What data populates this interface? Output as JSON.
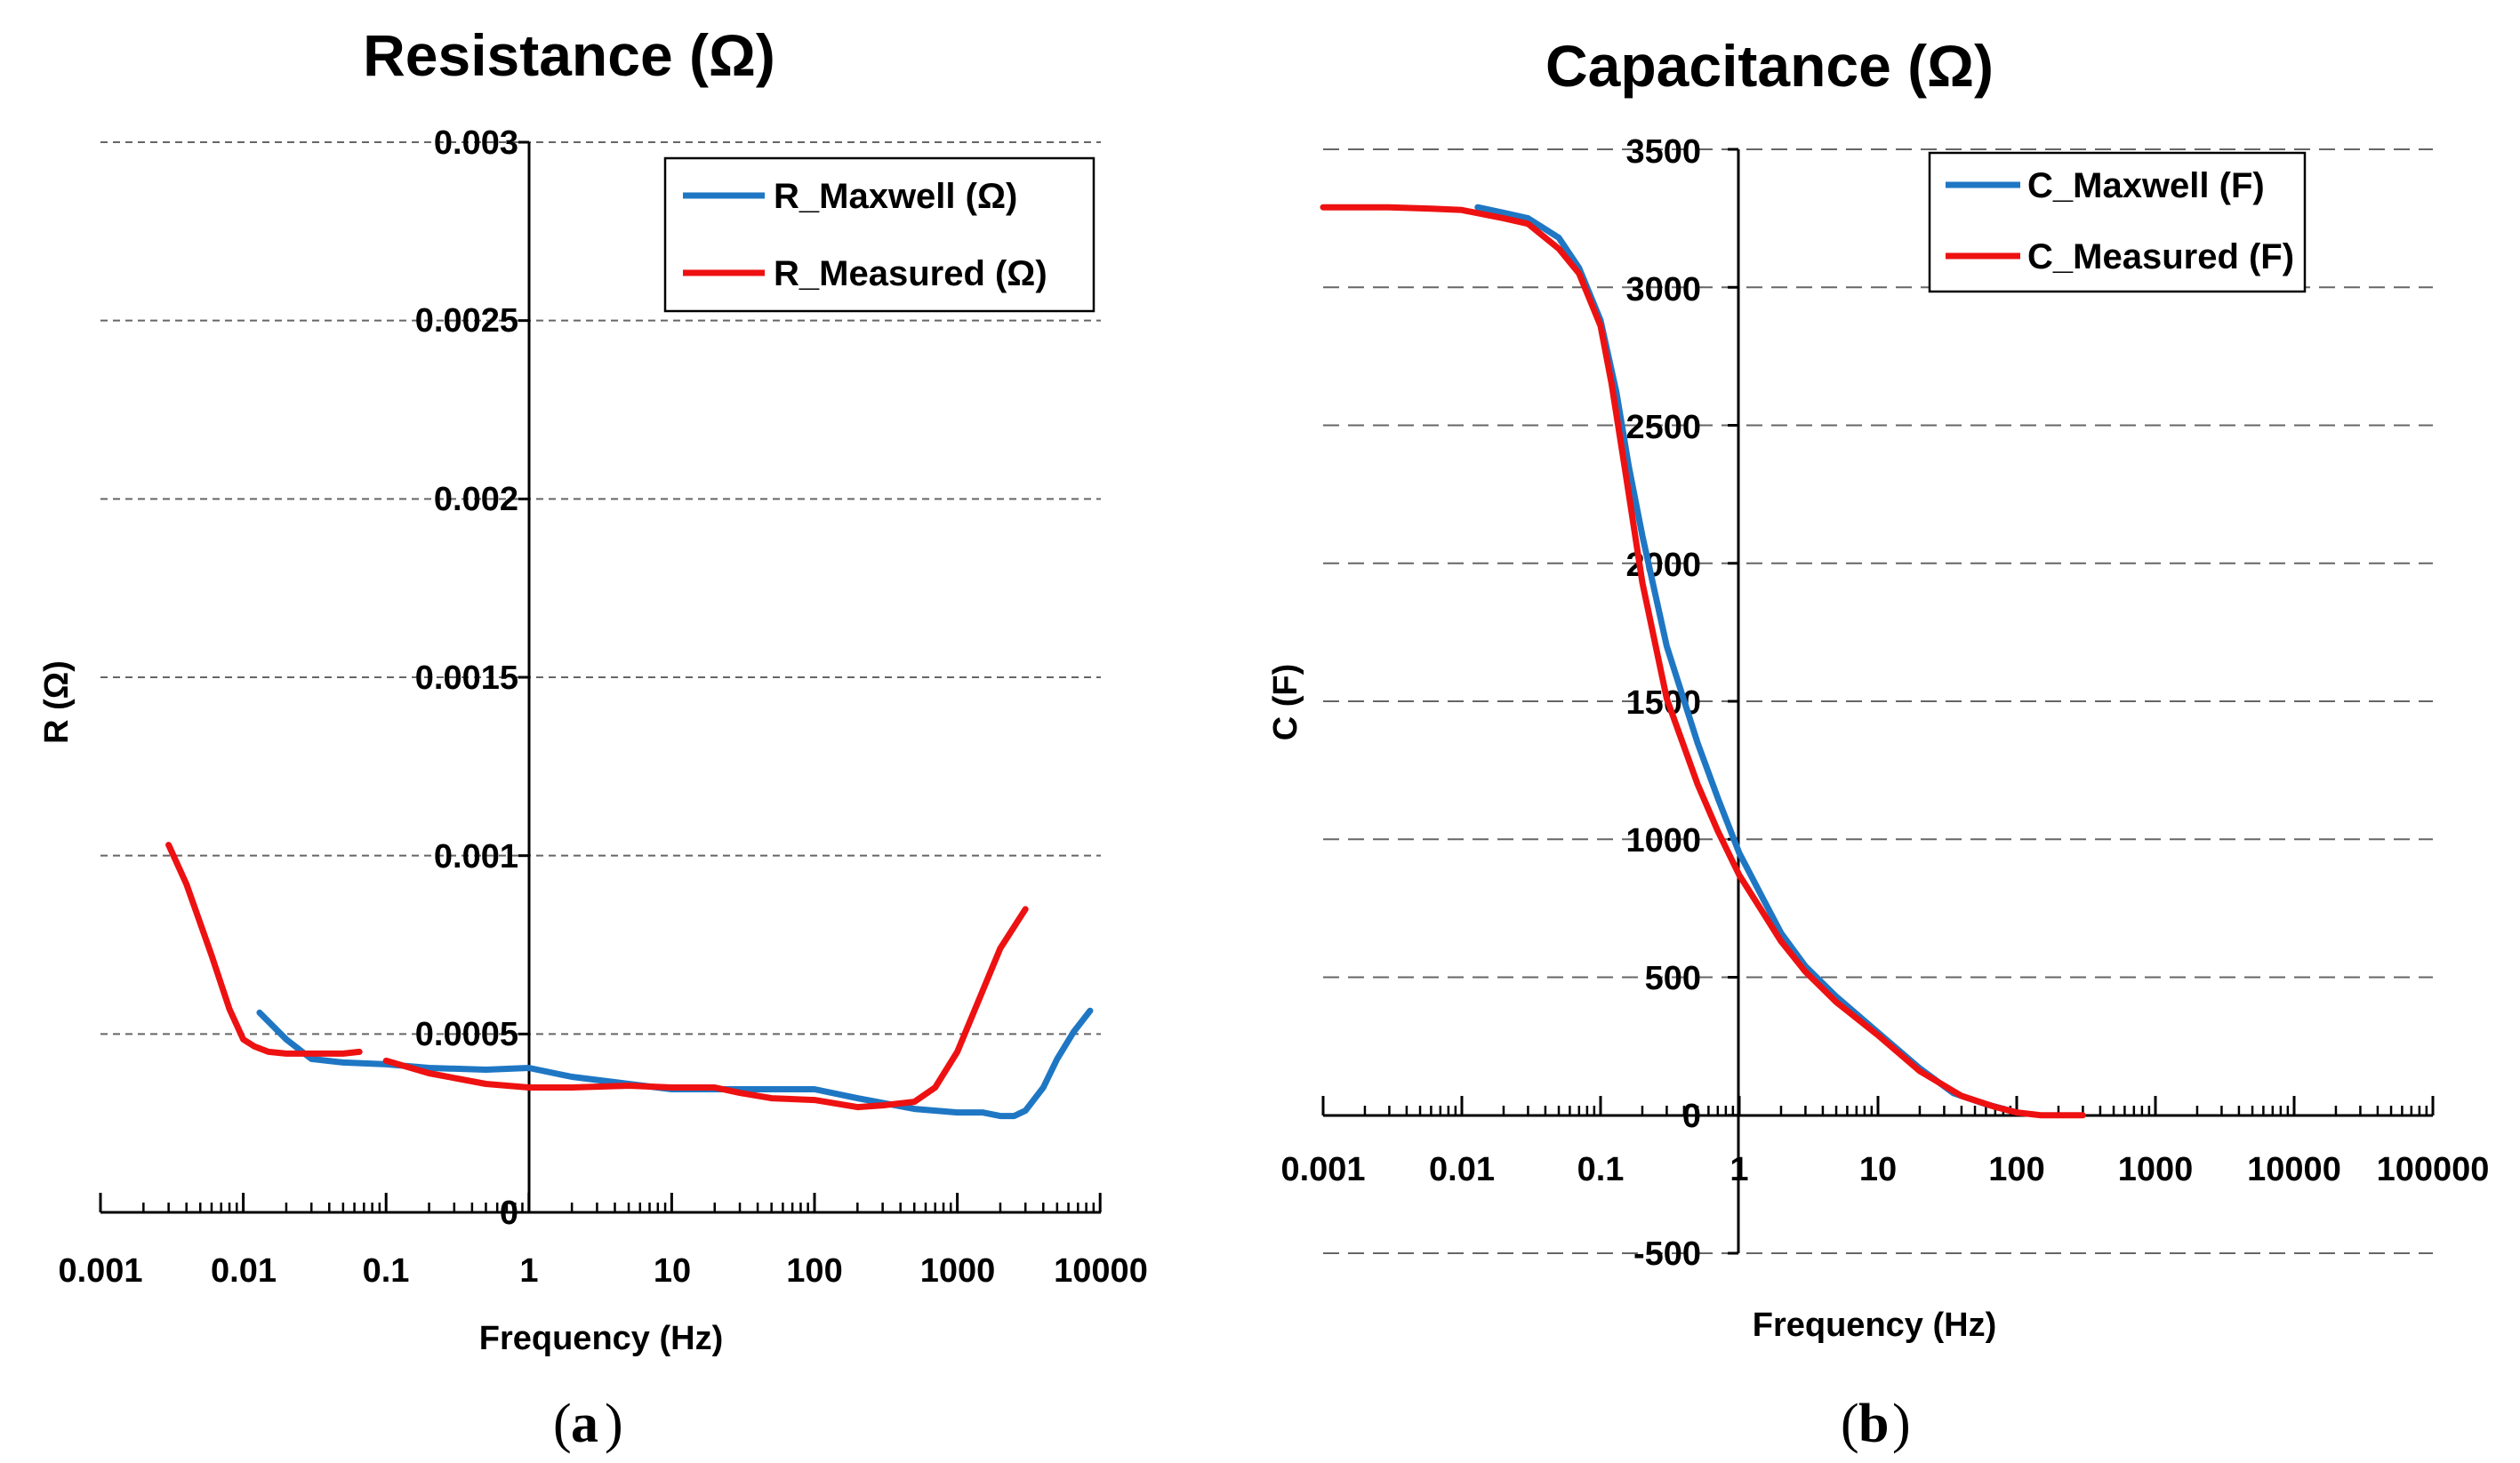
{
  "chart_data": [
    {
      "type": "line",
      "title": "Resistance (Ω)",
      "xlabel": "Frequency (Hz)",
      "ylabel": "R (Ω)",
      "xscale": "log",
      "xlim": [
        0.001,
        10000
      ],
      "ylim": [
        0,
        0.003
      ],
      "x_tick_labels": [
        "0.001",
        "0.01",
        "0.1",
        "1",
        "10",
        "100",
        "1000",
        "10000"
      ],
      "y_tick_labels": [
        "0",
        "0.0005",
        "0.001",
        "0.0015",
        "0.002",
        "0.0025",
        "0.003"
      ],
      "y_ticks": [
        0,
        0.0005,
        0.001,
        0.0015,
        0.002,
        0.0025,
        0.003
      ],
      "grid": "horizontal dashed",
      "legend_position": "top-right",
      "caption_label": "a",
      "series": [
        {
          "name": "R_Maxwell (Ω)",
          "color": "#1f77c4",
          "x": [
            0.013,
            0.02,
            0.03,
            0.05,
            0.1,
            0.2,
            0.5,
            1,
            2,
            5,
            10,
            20,
            50,
            100,
            200,
            500,
            1000,
            1500,
            2000,
            2500,
            3000,
            4000,
            5000,
            6500,
            8500
          ],
          "y": [
            0.00056,
            0.000485,
            0.00043,
            0.00042,
            0.000415,
            0.000405,
            0.0004,
            0.000405,
            0.00038,
            0.00036,
            0.000345,
            0.000345,
            0.000345,
            0.000345,
            0.00032,
            0.00029,
            0.00028,
            0.00028,
            0.00027,
            0.00027,
            0.000285,
            0.00035,
            0.00043,
            0.000505,
            0.000565
          ]
        },
        {
          "name": "R_Measured (Ω)",
          "color": "#ee1111",
          "x": [
            0.003,
            0.004,
            0.006,
            0.008,
            0.01,
            0.012,
            0.015,
            0.02,
            0.03,
            0.05,
            0.065
          ],
          "y": [
            0.00103,
            0.00092,
            0.00072,
            0.00057,
            0.000485,
            0.000465,
            0.00045,
            0.000445,
            0.000445,
            0.000445,
            0.00045
          ]
        },
        {
          "name": "R_Measured (Ω)",
          "color": "#ee1111",
          "x": [
            0.1,
            0.2,
            0.5,
            1,
            2,
            5,
            10,
            20,
            30,
            50,
            100,
            200,
            300,
            500,
            700,
            1000,
            1500,
            2000,
            3000
          ],
          "y": [
            0.000425,
            0.00039,
            0.00036,
            0.00035,
            0.00035,
            0.000355,
            0.00035,
            0.00035,
            0.000335,
            0.00032,
            0.000315,
            0.000295,
            0.0003,
            0.00031,
            0.00035,
            0.00045,
            0.00062,
            0.00074,
            0.00085
          ]
        }
      ]
    },
    {
      "type": "line",
      "title": "Capacitance (Ω)",
      "xlabel": "Frequency (Hz)",
      "ylabel": "C (F)",
      "xscale": "log",
      "xlim": [
        0.001,
        100000
      ],
      "ylim": [
        -500,
        3500
      ],
      "x_tick_labels": [
        "0.001",
        "0.01",
        "0.1",
        "1",
        "10",
        "100",
        "1000",
        "10000",
        "100000"
      ],
      "y_tick_labels": [
        "-500",
        "0",
        "500",
        "1000",
        "1500",
        "2000",
        "2500",
        "3000",
        "3500"
      ],
      "y_ticks": [
        -500,
        0,
        500,
        1000,
        1500,
        2000,
        2500,
        3000,
        3500
      ],
      "grid": "horizontal dashed",
      "legend_position": "top-right",
      "caption_label": "b",
      "series": [
        {
          "name": "C_Maxwell (F)",
          "color": "#1f77c4",
          "x": [
            0.013,
            0.02,
            0.03,
            0.05,
            0.07,
            0.1,
            0.13,
            0.16,
            0.2,
            0.3,
            0.5,
            0.7,
            1,
            1.5,
            2,
            3,
            5,
            10,
            20,
            35,
            60,
            100
          ],
          "y": [
            3290,
            3270,
            3250,
            3180,
            3070,
            2880,
            2620,
            2350,
            2100,
            1700,
            1350,
            1150,
            950,
            780,
            660,
            540,
            430,
            300,
            170,
            80,
            40,
            10
          ]
        },
        {
          "name": "C_Measured (F)",
          "color": "#ee1111",
          "x": [
            0.001,
            0.003,
            0.006,
            0.01,
            0.02,
            0.03,
            0.05,
            0.07,
            0.1,
            0.12,
            0.15,
            0.2,
            0.3,
            0.5,
            0.7,
            1,
            1.5,
            2,
            3,
            5,
            10,
            20,
            40,
            70,
            100,
            150,
            200,
            300
          ],
          "y": [
            3290,
            3290,
            3285,
            3280,
            3250,
            3230,
            3140,
            3050,
            2860,
            2650,
            2340,
            1930,
            1510,
            1200,
            1030,
            870,
            730,
            630,
            520,
            410,
            290,
            160,
            70,
            30,
            10,
            0,
            0,
            0
          ]
        }
      ]
    }
  ]
}
